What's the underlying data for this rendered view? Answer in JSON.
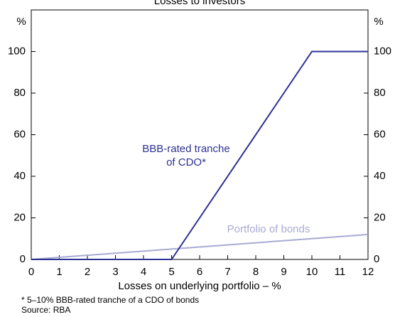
{
  "chart_data": {
    "type": "line",
    "title": "Losses to investors",
    "y_label": "%",
    "y2_label": "%",
    "x_label": "Losses on underlying portfolio – %",
    "xlim": [
      0,
      12
    ],
    "xticks": [
      0,
      1,
      2,
      3,
      4,
      5,
      6,
      7,
      8,
      9,
      10,
      11,
      12
    ],
    "ylim": [
      0,
      120
    ],
    "yticks": [
      0,
      20,
      40,
      60,
      80,
      100
    ],
    "y2lim": [
      0,
      120
    ],
    "y2ticks": [
      0,
      20,
      40,
      60,
      80,
      100
    ],
    "series": [
      {
        "color": "#2e3192",
        "x": [
          0,
          5,
          10,
          12
        ],
        "values": [
          0,
          0,
          100,
          100
        ]
      },
      {
        "color": "#a9aad3",
        "x": [
          0,
          12
        ],
        "values": [
          0,
          12
        ]
      }
    ],
    "annotations": [
      "BBB-rated tranche",
      "of CDO*",
      "Portfolio of bonds"
    ],
    "footnote": "*    5–10% BBB-rated tranche of a CDO of bonds",
    "source": "Source: RBA"
  }
}
